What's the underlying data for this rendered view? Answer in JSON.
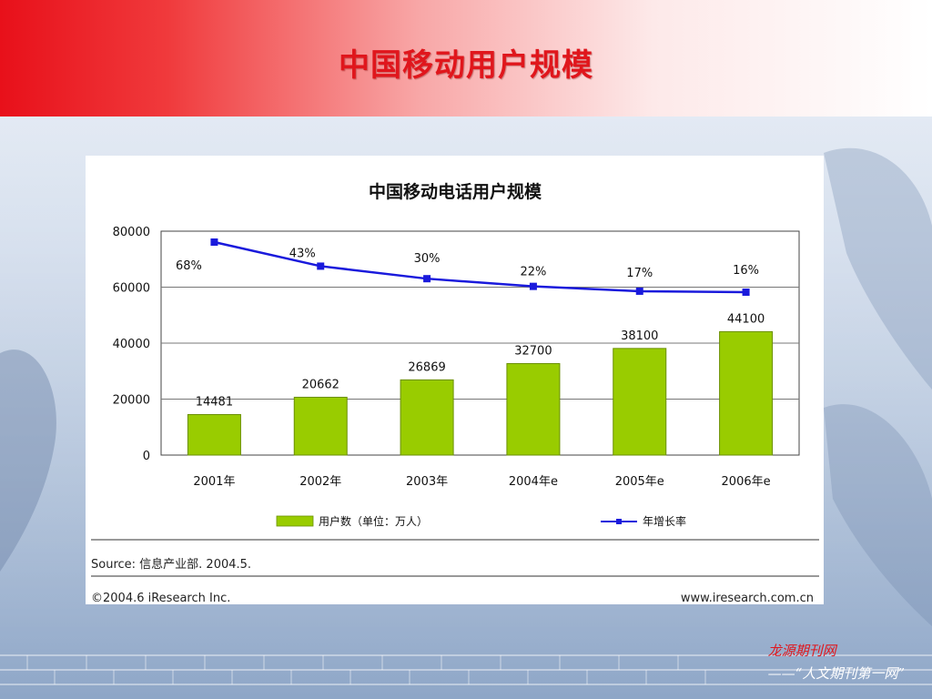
{
  "slide": {
    "title": "中国移动用户规模",
    "brand_name": "龙源期刊网",
    "brand_tagline": "——“人文期刊第一网”"
  },
  "chart_data": {
    "type": "bar",
    "title": "中国移动电话用户规模",
    "categories": [
      "2001年",
      "2002年",
      "2003年",
      "2004年e",
      "2005年e",
      "2006年e"
    ],
    "ylim": [
      0,
      80000
    ],
    "yticks": [
      "0",
      "20000",
      "40000",
      "60000",
      "80000"
    ],
    "grid": true,
    "series": [
      {
        "name": "用户数（单位：万人）",
        "type": "bar",
        "color": "#99cc00",
        "values": [
          14481,
          20662,
          26869,
          32700,
          38100,
          44100
        ],
        "labels": [
          "14481",
          "20662",
          "26869",
          "32700",
          "38100",
          "44100"
        ]
      },
      {
        "name": "年增长率",
        "type": "line",
        "color": "#1a1adc",
        "values_pct": [
          68,
          43,
          30,
          22,
          17,
          16
        ],
        "labels": [
          "68%",
          "43%",
          "30%",
          "22%",
          "17%",
          "16%"
        ]
      }
    ],
    "legend_position": "bottom",
    "source": "Source: 信息产业部. 2004.5.",
    "copyright": "©2004.6 iResearch Inc.",
    "website": "www.iresearch.com.cn"
  }
}
